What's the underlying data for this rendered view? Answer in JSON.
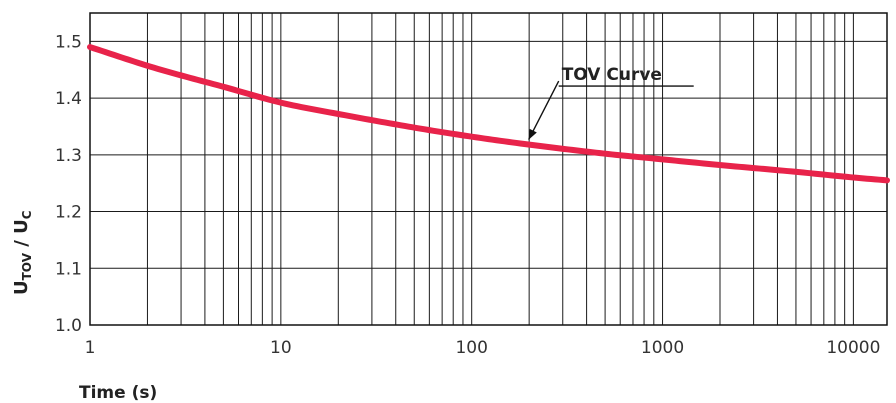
{
  "chart_data": {
    "type": "line",
    "xscale": "log",
    "xlim": [
      1,
      15000
    ],
    "ylim": [
      1.0,
      1.55
    ],
    "grid": true,
    "xlabel": "Time (s)",
    "ylabel": {
      "main1": "U",
      "sub1": "TOV",
      "sep": " / ",
      "main2": "U",
      "sub2": "C"
    },
    "xticks": [
      1,
      10,
      100,
      1000,
      10000
    ],
    "xtick_labels": [
      "1",
      "10",
      "100",
      "1000",
      "10000"
    ],
    "yticks": [
      1.0,
      1.1,
      1.2,
      1.3,
      1.4,
      1.5
    ],
    "ytick_labels": [
      "1.0",
      "1.1",
      "1.2",
      "1.3",
      "1.4",
      "1.5"
    ],
    "series": [
      {
        "color": "#e8234a",
        "x": [
          1,
          2,
          3,
          5,
          10,
          20,
          50,
          100,
          200,
          500,
          1000,
          2000,
          5000,
          10000,
          15000
        ],
        "y": [
          1.49,
          1.457,
          1.44,
          1.42,
          1.392,
          1.372,
          1.348,
          1.332,
          1.318,
          1.302,
          1.292,
          1.282,
          1.27,
          1.26,
          1.255
        ]
      }
    ],
    "annotation": {
      "text": "TOV Curve",
      "x": 100,
      "y": 1.332
    }
  }
}
